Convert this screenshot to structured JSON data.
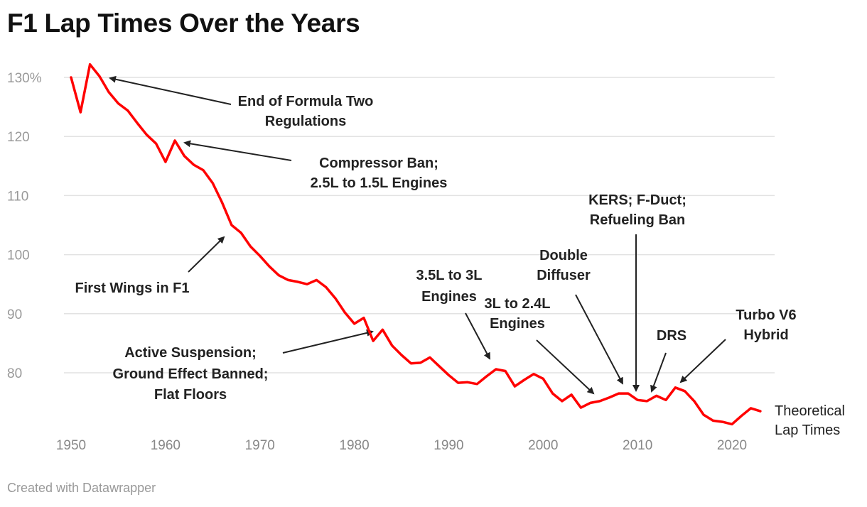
{
  "title": "F1 Lap Times Over the Years",
  "footer": "Created with Datawrapper",
  "chart_data": {
    "type": "line",
    "title": "F1 Lap Times Over the Years",
    "xlabel": "",
    "ylabel": "",
    "xlim": [
      1950,
      2023
    ],
    "ylim": [
      70,
      132
    ],
    "grid": true,
    "x_ticks": [
      "1950",
      "1960",
      "1970",
      "1980",
      "1990",
      "2000",
      "2010",
      "2020"
    ],
    "y_ticks": [
      "130%",
      "120",
      "110",
      "100",
      "90",
      "80"
    ],
    "series": [
      {
        "name": "Theoretical Lap Times",
        "label_lines": [
          "Theoretical",
          "Lap Times"
        ],
        "color": "#ff0000",
        "x": [
          1950,
          1951,
          1952,
          1953,
          1954,
          1955,
          1956,
          1957,
          1958,
          1959,
          1960,
          1961,
          1962,
          1963,
          1964,
          1965,
          1966,
          1967,
          1968,
          1969,
          1970,
          1971,
          1972,
          1973,
          1974,
          1975,
          1976,
          1977,
          1978,
          1979,
          1980,
          1981,
          1982,
          1983,
          1984,
          1985,
          1986,
          1987,
          1988,
          1989,
          1990,
          1991,
          1992,
          1993,
          1994,
          1995,
          1996,
          1997,
          1998,
          1999,
          2000,
          2001,
          2002,
          2003,
          2004,
          2005,
          2006,
          2007,
          2008,
          2009,
          2010,
          2011,
          2012,
          2013,
          2014,
          2015,
          2016,
          2017,
          2018,
          2019,
          2020,
          2021,
          2022,
          2023
        ],
        "values": [
          130.0,
          124.1,
          132.2,
          130.2,
          127.5,
          125.6,
          124.4,
          122.3,
          120.3,
          118.8,
          115.7,
          119.3,
          116.7,
          115.2,
          114.3,
          112.1,
          108.8,
          105.0,
          103.7,
          101.4,
          99.8,
          98.0,
          96.5,
          95.7,
          95.4,
          95.0,
          95.7,
          94.5,
          92.6,
          90.2,
          88.3,
          89.3,
          85.4,
          87.3,
          84.6,
          83.0,
          81.6,
          81.7,
          82.6,
          81.1,
          79.6,
          78.3,
          78.4,
          78.1,
          79.4,
          80.6,
          80.3,
          77.7,
          78.8,
          79.8,
          79.0,
          76.5,
          75.2,
          76.3,
          74.1,
          74.9,
          75.2,
          75.8,
          76.5,
          76.5,
          75.4,
          75.2,
          76.1,
          75.4,
          77.5,
          76.9,
          75.2,
          72.9,
          71.9,
          71.7,
          71.3,
          72.7,
          74.0,
          73.5
        ]
      }
    ],
    "annotations": [
      {
        "lines": [
          "End of Formula Two",
          "Regulations"
        ],
        "year": 1953
      },
      {
        "lines": [
          "Compressor Ban;",
          "2.5L to 1.5L Engines"
        ],
        "year": 1961
      },
      {
        "lines": [
          "First Wings in F1"
        ],
        "year": 1967
      },
      {
        "lines": [
          "Active Suspension;",
          "Ground Effect Banned;",
          "Flat Floors"
        ],
        "year": 1983
      },
      {
        "lines": [
          "3.5L to 3L",
          "Engines"
        ],
        "year": 1995
      },
      {
        "lines": [
          "3L to 2.4L",
          "Engines"
        ],
        "year": 2006
      },
      {
        "lines": [
          "Double",
          "Diffuser"
        ],
        "year": 2009
      },
      {
        "lines": [
          "KERS; F-Duct;",
          "Refueling Ban"
        ],
        "year": 2010
      },
      {
        "lines": [
          "DRS"
        ],
        "year": 2011
      },
      {
        "lines": [
          "Turbo V6",
          "Hybrid"
        ],
        "year": 2014
      }
    ]
  }
}
